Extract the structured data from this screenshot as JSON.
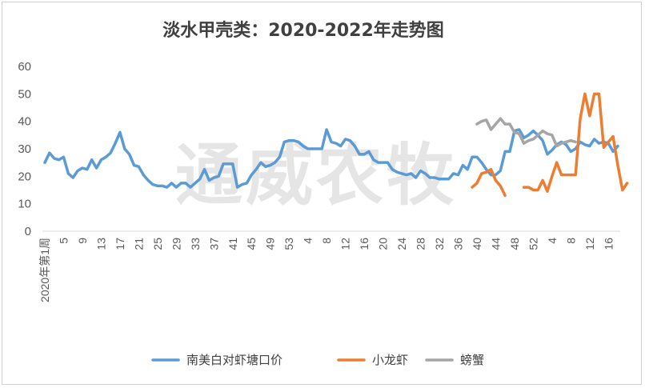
{
  "chart_data": {
    "type": "line",
    "title": "淡水甲壳类：2020-2022年走势图",
    "watermark": "通威农牧",
    "ylim": [
      0,
      60
    ],
    "yticks": [
      0,
      10,
      20,
      30,
      40,
      50,
      60
    ],
    "grid": false,
    "legend_position": "bottom",
    "x_tick_labels": [
      "2020年第1周",
      "5",
      "9",
      "13",
      "17",
      "21",
      "25",
      "29",
      "33",
      "37",
      "41",
      "45",
      "49",
      "53",
      "4",
      "8",
      "12",
      "16",
      "20",
      "24",
      "28",
      "32",
      "36",
      "40",
      "44",
      "48",
      "52",
      "4",
      "8",
      "12",
      "16"
    ],
    "series": [
      {
        "name": "南美白对虾塘口价",
        "color": "#5b9bd5",
        "start_index": 0,
        "values": [
          25,
          28.5,
          26.5,
          26,
          27,
          21,
          19.5,
          22,
          23,
          22.5,
          26,
          23,
          26,
          27,
          28.5,
          32,
          36,
          30,
          28,
          24,
          23.5,
          20.5,
          18.5,
          17,
          16.5,
          16.5,
          16,
          17.5,
          16,
          17.5,
          17.5,
          16,
          17.5,
          19,
          22.5,
          18.5,
          19.5,
          20,
          24.5,
          24.5,
          24.5,
          16,
          17,
          17.5,
          20.5,
          22.5,
          25,
          23.5,
          24,
          25,
          27,
          32.5,
          33,
          33,
          32.5,
          31,
          30,
          30,
          30,
          30,
          37,
          32.5,
          32,
          31,
          33.5,
          33,
          31,
          28,
          28,
          29,
          26,
          25,
          25,
          25,
          22.5,
          21.5,
          21,
          20.5,
          21,
          19.5,
          22,
          21,
          19.5,
          19.5,
          19,
          19,
          19,
          21,
          20.5,
          24,
          22.5,
          27,
          27,
          25,
          22.5,
          20.5,
          20.5,
          22,
          29,
          29,
          36.5,
          37,
          34,
          35,
          36.5,
          35,
          33,
          28,
          29.5,
          31.5,
          32.5,
          31.5,
          29,
          30,
          32.5,
          31.5,
          31,
          33.5,
          32,
          32.5,
          32,
          29,
          31
        ]
      },
      {
        "name": "小龙虾",
        "color": "#ed7d31",
        "segments": [
          {
            "start_index": 91,
            "values": [
              16,
              17.5,
              21,
              21.5,
              22.5,
              18.5,
              16.5,
              13
            ]
          },
          {
            "start_index": 102,
            "values": [
              16,
              16,
              15,
              15,
              18.5,
              14.5,
              20,
              25,
              20.5,
              20.5,
              20.5,
              20.5,
              41,
              50,
              42,
              50,
              50,
              30.5,
              32.5,
              34.5,
              24,
              15,
              17.5
            ]
          }
        ]
      },
      {
        "name": "螃蟹",
        "color": "#a5a5a5",
        "start_index": 92,
        "values": [
          39,
          40,
          40.5,
          37,
          39,
          41,
          39,
          39,
          36,
          35.5,
          32,
          33,
          33.5,
          35,
          36.5,
          35.5,
          35,
          31,
          32,
          32.5,
          33,
          32.5
        ]
      }
    ]
  }
}
